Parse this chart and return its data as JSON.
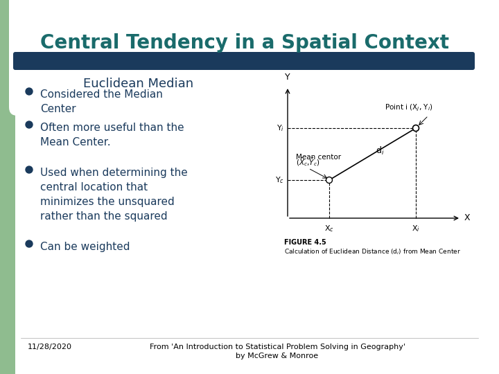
{
  "title": "Central Tendency in a Spatial Context",
  "subtitle": "Euclidean Median",
  "bullet_points": [
    "Considered the Median\nCenter",
    "Often more useful than the\nMean Center.",
    "Used when determining the\ncentral location that\nminimizes the unsquared\nrather than the squared",
    "Can be weighted"
  ],
  "footer_left": "11/28/2020",
  "footer_right": "From 'An Introduction to Statistical Problem Solving in Geography'\nby McGrew & Monroe",
  "bg_color": "#ffffff",
  "green_color": "#8fbc8f",
  "title_color": "#1a6b6b",
  "bar_color": "#1a3a5c",
  "subtitle_color": "#1a3a5c",
  "body_text_color": "#1a3a5c"
}
